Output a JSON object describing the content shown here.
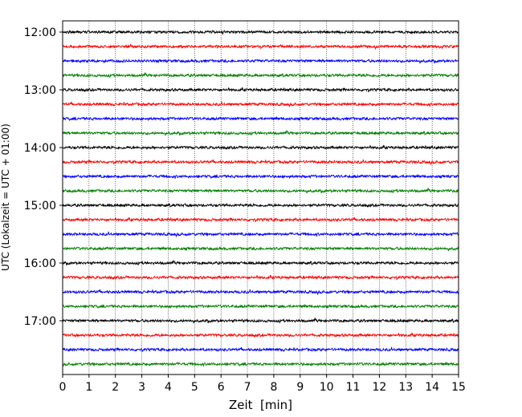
{
  "chart_data": {
    "type": "line",
    "chart_kind": "helicorder seismogram (stacked traces)",
    "xlabel": "Zeit  [min]",
    "ylabel": "UTC (Lokalzeit = UTC + 01:00)",
    "xlim": [
      0,
      15
    ],
    "x_ticks": [
      "0",
      "1",
      "2",
      "3",
      "4",
      "5",
      "6",
      "7",
      "8",
      "9",
      "10",
      "11",
      "12",
      "13",
      "14",
      "15"
    ],
    "y_tick_labels": [
      "12:00",
      "13:00",
      "14:00",
      "15:00",
      "16:00",
      "17:00"
    ],
    "trace_interval_minutes": 15,
    "first_trace_time": "12:00",
    "trace_count": 24,
    "trace_color_cycle": [
      "#000000",
      "#ff0000",
      "#0000ff",
      "#008000"
    ],
    "grid": "vertical dotted lines at each minute",
    "series": [
      {
        "start": "12:00",
        "color": "#000000"
      },
      {
        "start": "12:15",
        "color": "#ff0000"
      },
      {
        "start": "12:30",
        "color": "#0000ff"
      },
      {
        "start": "12:45",
        "color": "#008000"
      },
      {
        "start": "13:00",
        "color": "#000000"
      },
      {
        "start": "13:15",
        "color": "#ff0000"
      },
      {
        "start": "13:30",
        "color": "#0000ff"
      },
      {
        "start": "13:45",
        "color": "#008000"
      },
      {
        "start": "14:00",
        "color": "#000000"
      },
      {
        "start": "14:15",
        "color": "#ff0000"
      },
      {
        "start": "14:30",
        "color": "#0000ff"
      },
      {
        "start": "14:45",
        "color": "#008000"
      },
      {
        "start": "15:00",
        "color": "#000000"
      },
      {
        "start": "15:15",
        "color": "#ff0000"
      },
      {
        "start": "15:30",
        "color": "#0000ff"
      },
      {
        "start": "15:45",
        "color": "#008000"
      },
      {
        "start": "16:00",
        "color": "#000000"
      },
      {
        "start": "16:15",
        "color": "#ff0000"
      },
      {
        "start": "16:30",
        "color": "#0000ff"
      },
      {
        "start": "16:45",
        "color": "#008000"
      },
      {
        "start": "17:00",
        "color": "#000000"
      },
      {
        "start": "17:15",
        "color": "#ff0000"
      },
      {
        "start": "17:30",
        "color": "#0000ff"
      },
      {
        "start": "17:45",
        "color": "#008000"
      }
    ]
  }
}
